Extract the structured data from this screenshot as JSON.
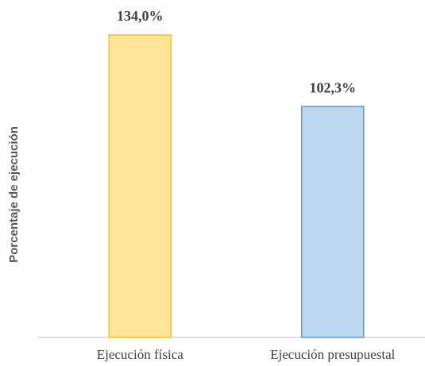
{
  "chart_data": {
    "type": "bar",
    "y_label": "Porcentaje de ejecución",
    "categories": [
      "Ejecución física",
      "Ejecución presupuestal"
    ],
    "values": [
      134.0,
      102.3
    ],
    "value_labels": [
      "134,0%",
      "102,3%"
    ],
    "colors": [
      "#ffe699",
      "#bdd7ee"
    ],
    "edge_colors": [
      "#ffc000",
      "#5b9bd5"
    ],
    "ylim": [
      0,
      140
    ]
  }
}
